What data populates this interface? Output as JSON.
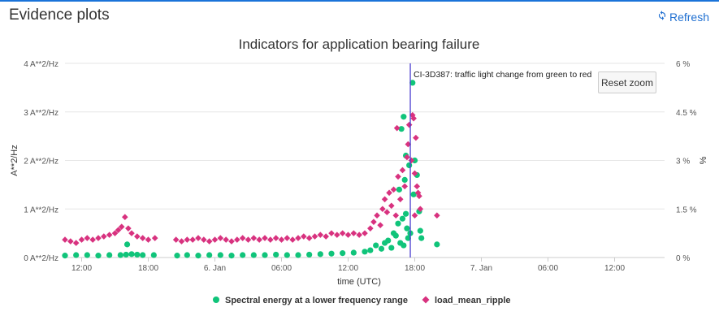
{
  "page": {
    "title": "Evidence plots",
    "refresh_label": "Refresh"
  },
  "controls": {
    "reset_zoom_label": "Reset zoom"
  },
  "colors": {
    "accent": "#1f6fd1",
    "series_green": "#10c47a",
    "series_pink": "#d8327f",
    "event_line": "#4b3fd0"
  },
  "chart_data": {
    "type": "scatter",
    "title": "Indicators for application bearing failure",
    "xlabel": "time (UTC)",
    "ylabel_left": "A**2/Hz",
    "ylabel_right": "%",
    "x_ticks": [
      "12:00",
      "18:00",
      "6. Jan",
      "06:00",
      "12:00",
      "18:00",
      "7. Jan",
      "06:00",
      "12:00"
    ],
    "x_tick_hours": [
      12,
      18,
      24,
      30,
      36,
      42,
      48,
      54,
      60
    ],
    "xlim_hours": [
      10.5,
      64.5
    ],
    "y_left_ticks": [
      "0 A**2/Hz",
      "1 A**2/Hz",
      "2 A**2/Hz",
      "3 A**2/Hz",
      "4 A**2/Hz"
    ],
    "ylim_left": [
      0,
      4
    ],
    "y_right_ticks": [
      "0 %",
      "1.5 %",
      "3 %",
      "4.5 %",
      "6 %"
    ],
    "ylim_right": [
      0,
      6
    ],
    "annotation": {
      "label": "CI-3D387: traffic light change from green to red",
      "x_hour": 41.6
    },
    "series": [
      {
        "name": "Spectral energy at a lower frequency range",
        "marker": "circle",
        "axis": "left",
        "points": [
          [
            10.5,
            0.04
          ],
          [
            11.5,
            0.05
          ],
          [
            12.5,
            0.05
          ],
          [
            13.5,
            0.04
          ],
          [
            14.5,
            0.05
          ],
          [
            15.5,
            0.05
          ],
          [
            16.0,
            0.06
          ],
          [
            16.5,
            0.07
          ],
          [
            17.0,
            0.06
          ],
          [
            17.5,
            0.05
          ],
          [
            18.5,
            0.05
          ],
          [
            16.1,
            0.27
          ],
          [
            20.6,
            0.04
          ],
          [
            21.5,
            0.05
          ],
          [
            22.5,
            0.04
          ],
          [
            23.5,
            0.05
          ],
          [
            24.5,
            0.05
          ],
          [
            25.5,
            0.04
          ],
          [
            26.5,
            0.05
          ],
          [
            27.5,
            0.05
          ],
          [
            28.5,
            0.05
          ],
          [
            29.5,
            0.06
          ],
          [
            30.5,
            0.05
          ],
          [
            31.5,
            0.05
          ],
          [
            32.5,
            0.06
          ],
          [
            33.5,
            0.07
          ],
          [
            34.5,
            0.08
          ],
          [
            35.5,
            0.09
          ],
          [
            36.5,
            0.1
          ],
          [
            37.5,
            0.12
          ],
          [
            38.0,
            0.15
          ],
          [
            38.5,
            0.25
          ],
          [
            39.0,
            0.18
          ],
          [
            39.3,
            0.3
          ],
          [
            39.6,
            0.35
          ],
          [
            39.9,
            0.2
          ],
          [
            40.1,
            0.5
          ],
          [
            40.3,
            0.45
          ],
          [
            40.5,
            0.7
          ],
          [
            40.7,
            0.3
          ],
          [
            40.9,
            0.8
          ],
          [
            41.0,
            0.25
          ],
          [
            41.2,
            0.9
          ],
          [
            41.3,
            0.6
          ],
          [
            41.4,
            0.4
          ],
          [
            40.8,
            2.65
          ],
          [
            41.0,
            2.9
          ],
          [
            41.2,
            2.1
          ],
          [
            41.5,
            1.9
          ],
          [
            41.8,
            3.6
          ],
          [
            42.0,
            2.0
          ],
          [
            42.2,
            1.7
          ],
          [
            42.4,
            0.95
          ],
          [
            42.5,
            0.55
          ],
          [
            42.6,
            0.4
          ],
          [
            41.6,
            0.5
          ],
          [
            40.6,
            1.4
          ],
          [
            41.1,
            1.6
          ],
          [
            41.9,
            1.3
          ],
          [
            44.0,
            0.27
          ]
        ]
      },
      {
        "name": "load_mean_ripple",
        "marker": "diamond",
        "axis": "right",
        "points": [
          [
            10.5,
            0.55
          ],
          [
            11.0,
            0.5
          ],
          [
            11.5,
            0.45
          ],
          [
            12.0,
            0.55
          ],
          [
            12.5,
            0.6
          ],
          [
            13.0,
            0.55
          ],
          [
            13.5,
            0.6
          ],
          [
            14.0,
            0.65
          ],
          [
            14.5,
            0.7
          ],
          [
            15.0,
            0.75
          ],
          [
            15.3,
            0.85
          ],
          [
            15.6,
            0.95
          ],
          [
            15.9,
            1.25
          ],
          [
            16.2,
            0.9
          ],
          [
            16.5,
            0.75
          ],
          [
            17.0,
            0.65
          ],
          [
            17.5,
            0.6
          ],
          [
            18.0,
            0.55
          ],
          [
            18.6,
            0.6
          ],
          [
            20.5,
            0.55
          ],
          [
            21.0,
            0.5
          ],
          [
            21.5,
            0.55
          ],
          [
            22.0,
            0.55
          ],
          [
            22.5,
            0.6
          ],
          [
            23.0,
            0.55
          ],
          [
            23.5,
            0.5
          ],
          [
            24.0,
            0.55
          ],
          [
            24.5,
            0.6
          ],
          [
            25.0,
            0.55
          ],
          [
            25.5,
            0.5
          ],
          [
            26.0,
            0.55
          ],
          [
            26.5,
            0.6
          ],
          [
            27.0,
            0.55
          ],
          [
            27.5,
            0.6
          ],
          [
            28.0,
            0.55
          ],
          [
            28.5,
            0.6
          ],
          [
            29.0,
            0.55
          ],
          [
            29.5,
            0.6
          ],
          [
            30.0,
            0.55
          ],
          [
            30.5,
            0.6
          ],
          [
            31.0,
            0.55
          ],
          [
            31.5,
            0.6
          ],
          [
            32.0,
            0.65
          ],
          [
            32.5,
            0.6
          ],
          [
            33.0,
            0.65
          ],
          [
            33.5,
            0.7
          ],
          [
            34.0,
            0.65
          ],
          [
            34.5,
            0.75
          ],
          [
            35.0,
            0.7
          ],
          [
            35.5,
            0.75
          ],
          [
            36.0,
            0.7
          ],
          [
            36.5,
            0.75
          ],
          [
            37.0,
            0.7
          ],
          [
            37.5,
            0.75
          ],
          [
            38.0,
            0.9
          ],
          [
            38.3,
            1.1
          ],
          [
            38.6,
            1.3
          ],
          [
            38.9,
            1.0
          ],
          [
            39.1,
            1.5
          ],
          [
            39.3,
            1.8
          ],
          [
            39.5,
            1.4
          ],
          [
            39.7,
            2.0
          ],
          [
            39.9,
            1.6
          ],
          [
            40.1,
            2.1
          ],
          [
            40.3,
            1.3
          ],
          [
            40.5,
            2.5
          ],
          [
            40.7,
            1.8
          ],
          [
            40.9,
            2.7
          ],
          [
            41.1,
            2.2
          ],
          [
            41.3,
            3.1
          ],
          [
            41.4,
            3.5
          ],
          [
            41.5,
            4.1
          ],
          [
            41.7,
            3.0
          ],
          [
            41.8,
            4.4
          ],
          [
            41.9,
            4.3
          ],
          [
            42.0,
            2.6
          ],
          [
            42.1,
            3.7
          ],
          [
            42.2,
            2.2
          ],
          [
            42.3,
            2.0
          ],
          [
            42.4,
            1.9
          ],
          [
            42.5,
            1.5
          ],
          [
            40.4,
            4.0
          ],
          [
            42.0,
            1.3
          ],
          [
            44.0,
            1.3
          ]
        ]
      }
    ],
    "legend": {
      "position": "bottom"
    },
    "grid": {
      "x": false,
      "y": true
    }
  }
}
